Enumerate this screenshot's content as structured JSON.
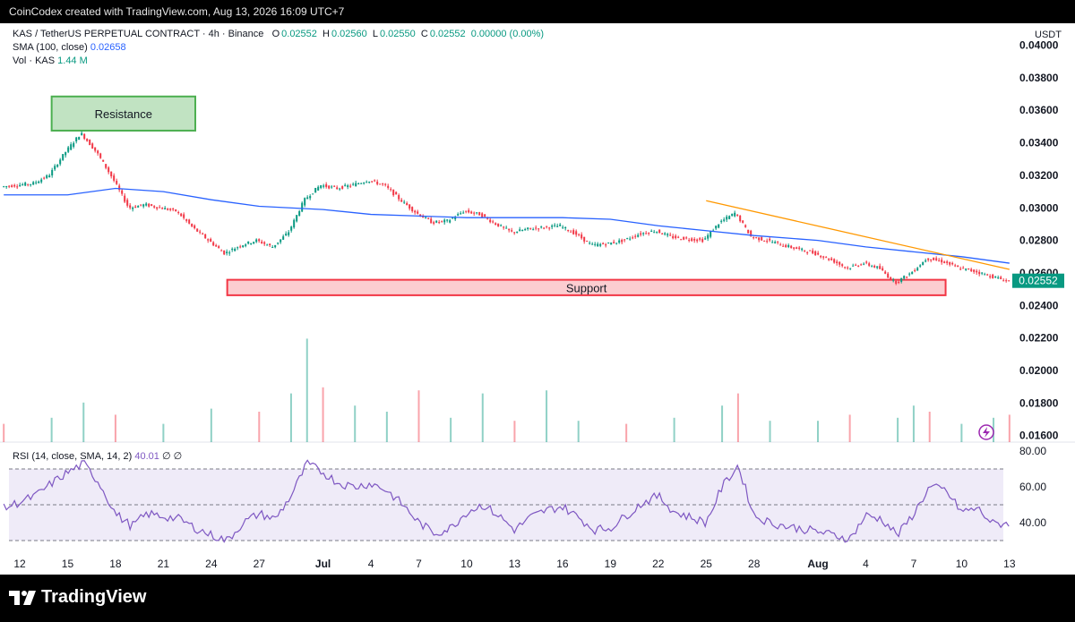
{
  "header": {
    "attribution": "CoinCodex created with TradingView.com, Aug 13, 2026 16:09 UTC+7"
  },
  "legend": {
    "symbol": "KAS / TetherUS PERPETUAL CONTRACT · 4h · Binance",
    "open_label": "O",
    "open": "0.02552",
    "high_label": "H",
    "high": "0.02560",
    "low_label": "L",
    "low": "0.02550",
    "close_label": "C",
    "close": "0.02552",
    "change": "0.00000 (0.00%)",
    "sma_label": "SMA (100, close)",
    "sma_value": "0.02658",
    "vol_label": "Vol · KAS",
    "vol_value": "1.44 M",
    "rsi_label": "RSI (14, close, SMA, 14, 2)",
    "rsi_value": "40.01",
    "rsi_na1": "∅",
    "rsi_na2": "∅"
  },
  "footer": {
    "brand": "TradingView"
  },
  "colors": {
    "up": "#089981",
    "down": "#f23645",
    "sma": "#2962ff",
    "trendline": "#ff9800",
    "rsi": "#7e57c2",
    "support": "#f23645",
    "resistance": "#4caf50",
    "last_price": "#089981"
  },
  "chart_data": {
    "type": "candlestick",
    "currency_label": "USDT",
    "price_axis": {
      "ticks": [
        "0.04000",
        "0.03800",
        "0.03600",
        "0.03400",
        "0.03200",
        "0.03000",
        "0.02800",
        "0.02600",
        "0.02400",
        "0.02200",
        "0.02000",
        "0.01800",
        "0.01600"
      ],
      "range": [
        0.0156,
        0.0408
      ]
    },
    "last_price": "0.02552",
    "x_axis": {
      "ticks": [
        "12",
        "15",
        "18",
        "21",
        "24",
        "27",
        "Jul",
        "4",
        "7",
        "10",
        "13",
        "16",
        "19",
        "22",
        "25",
        "28",
        "Aug",
        "4",
        "7",
        "10",
        "13"
      ]
    },
    "zones": [
      {
        "label": "Resistance",
        "date_start": "Jun 14",
        "date_end": "Jun 23",
        "price_low": 0.03475,
        "price_high": 0.03685
      },
      {
        "label": "Support",
        "date_start": "Jun 25",
        "date_end": "Aug 9",
        "price_low": 0.02463,
        "price_high": 0.02558
      }
    ],
    "trendline": {
      "start": {
        "date": "Jul 25",
        "price": 0.03044
      },
      "end": {
        "date": "Aug 13",
        "price": 0.02622
      }
    },
    "price_path": [
      {
        "date": "Jun 11",
        "price": 0.0313
      },
      {
        "date": "Jun 13",
        "price": 0.0315
      },
      {
        "date": "Jun 14",
        "price": 0.032
      },
      {
        "date": "Jun 15",
        "price": 0.0334
      },
      {
        "date": "Jun 16",
        "price": 0.0346
      },
      {
        "date": "Jun 17",
        "price": 0.0334
      },
      {
        "date": "Jun 18",
        "price": 0.0318
      },
      {
        "date": "Jun 19",
        "price": 0.03
      },
      {
        "date": "Jun 20",
        "price": 0.0302
      },
      {
        "date": "Jun 22",
        "price": 0.0298
      },
      {
        "date": "Jun 23",
        "price": 0.0288
      },
      {
        "date": "Jun 24",
        "price": 0.028
      },
      {
        "date": "Jun 25",
        "price": 0.0272
      },
      {
        "date": "Jun 26",
        "price": 0.0277
      },
      {
        "date": "Jun 27",
        "price": 0.028
      },
      {
        "date": "Jun 28",
        "price": 0.0276
      },
      {
        "date": "Jun 29",
        "price": 0.0285
      },
      {
        "date": "Jun 30",
        "price": 0.0305
      },
      {
        "date": "Jul 1",
        "price": 0.0314
      },
      {
        "date": "Jul 2",
        "price": 0.0312
      },
      {
        "date": "Jul 3",
        "price": 0.0314
      },
      {
        "date": "Jul 4",
        "price": 0.0317
      },
      {
        "date": "Jul 5",
        "price": 0.0314
      },
      {
        "date": "Jul 6",
        "price": 0.0305
      },
      {
        "date": "Jul 7",
        "price": 0.0297
      },
      {
        "date": "Jul 8",
        "price": 0.0291
      },
      {
        "date": "Jul 9",
        "price": 0.0292
      },
      {
        "date": "Jul 10",
        "price": 0.0298
      },
      {
        "date": "Jul 11",
        "price": 0.0296
      },
      {
        "date": "Jul 12",
        "price": 0.029
      },
      {
        "date": "Jul 13",
        "price": 0.0285
      },
      {
        "date": "Jul 14",
        "price": 0.0287
      },
      {
        "date": "Jul 15",
        "price": 0.0288
      },
      {
        "date": "Jul 16",
        "price": 0.0289
      },
      {
        "date": "Jul 17",
        "price": 0.0284
      },
      {
        "date": "Jul 18",
        "price": 0.0277
      },
      {
        "date": "Jul 19",
        "price": 0.0278
      },
      {
        "date": "Jul 20",
        "price": 0.028
      },
      {
        "date": "Jul 21",
        "price": 0.0284
      },
      {
        "date": "Jul 22",
        "price": 0.0286
      },
      {
        "date": "Jul 23",
        "price": 0.0282
      },
      {
        "date": "Jul 24",
        "price": 0.0281
      },
      {
        "date": "Jul 25",
        "price": 0.028
      },
      {
        "date": "Jul 26",
        "price": 0.0291
      },
      {
        "date": "Jul 27",
        "price": 0.0297
      },
      {
        "date": "Jul 28",
        "price": 0.0282
      },
      {
        "date": "Jul 29",
        "price": 0.028
      },
      {
        "date": "Jul 30",
        "price": 0.0277
      },
      {
        "date": "Aug 1",
        "price": 0.0272
      },
      {
        "date": "Aug 2",
        "price": 0.0268
      },
      {
        "date": "Aug 3",
        "price": 0.0263
      },
      {
        "date": "Aug 4",
        "price": 0.0266
      },
      {
        "date": "Aug 5",
        "price": 0.0263
      },
      {
        "date": "Aug 6",
        "price": 0.0254
      },
      {
        "date": "Aug 7",
        "price": 0.026
      },
      {
        "date": "Aug 8",
        "price": 0.0269
      },
      {
        "date": "Aug 9",
        "price": 0.0267
      },
      {
        "date": "Aug 10",
        "price": 0.0263
      },
      {
        "date": "Aug 11",
        "price": 0.0261
      },
      {
        "date": "Aug 12",
        "price": 0.0258
      },
      {
        "date": "Aug 13",
        "price": 0.02552
      }
    ],
    "sma_path": [
      {
        "date": "Jun 11",
        "price": 0.0308
      },
      {
        "date": "Jun 15",
        "price": 0.0308
      },
      {
        "date": "Jun 18",
        "price": 0.0312
      },
      {
        "date": "Jun 21",
        "price": 0.031
      },
      {
        "date": "Jun 24",
        "price": 0.0305
      },
      {
        "date": "Jun 27",
        "price": 0.0301
      },
      {
        "date": "Jul 1",
        "price": 0.0299
      },
      {
        "date": "Jul 4",
        "price": 0.0296
      },
      {
        "date": "Jul 7",
        "price": 0.0295
      },
      {
        "date": "Jul 10",
        "price": 0.0294
      },
      {
        "date": "Jul 13",
        "price": 0.0294
      },
      {
        "date": "Jul 16",
        "price": 0.0294
      },
      {
        "date": "Jul 19",
        "price": 0.0293
      },
      {
        "date": "Jul 22",
        "price": 0.0289
      },
      {
        "date": "Jul 25",
        "price": 0.0286
      },
      {
        "date": "Jul 28",
        "price": 0.0283
      },
      {
        "date": "Aug 1",
        "price": 0.028
      },
      {
        "date": "Aug 4",
        "price": 0.0276
      },
      {
        "date": "Aug 7",
        "price": 0.0273
      },
      {
        "date": "Aug 10",
        "price": 0.027
      },
      {
        "date": "Aug 13",
        "price": 0.0266
      }
    ],
    "rsi": {
      "levels": [
        "80.00",
        "60.00",
        "40.00"
      ],
      "range": [
        26,
        84
      ],
      "bands": [
        30,
        50,
        70
      ],
      "path": [
        {
          "date": "Jun 11",
          "value": 48
        },
        {
          "date": "Jun 13",
          "value": 55
        },
        {
          "date": "Jun 14",
          "value": 62
        },
        {
          "date": "Jun 15",
          "value": 68
        },
        {
          "date": "Jun 16",
          "value": 73
        },
        {
          "date": "Jun 17",
          "value": 62
        },
        {
          "date": "Jun 18",
          "value": 45
        },
        {
          "date": "Jun 19",
          "value": 38
        },
        {
          "date": "Jun 20",
          "value": 45
        },
        {
          "date": "Jun 22",
          "value": 42
        },
        {
          "date": "Jun 23",
          "value": 37
        },
        {
          "date": "Jun 24",
          "value": 33
        },
        {
          "date": "Jun 25",
          "value": 30
        },
        {
          "date": "Jun 26",
          "value": 40
        },
        {
          "date": "Jun 27",
          "value": 45
        },
        {
          "date": "Jun 28",
          "value": 42
        },
        {
          "date": "Jun 29",
          "value": 55
        },
        {
          "date": "Jun 30",
          "value": 73
        },
        {
          "date": "Jul 1",
          "value": 68
        },
        {
          "date": "Jul 2",
          "value": 62
        },
        {
          "date": "Jul 3",
          "value": 60
        },
        {
          "date": "Jul 4",
          "value": 62
        },
        {
          "date": "Jul 5",
          "value": 58
        },
        {
          "date": "Jul 6",
          "value": 50
        },
        {
          "date": "Jul 7",
          "value": 40
        },
        {
          "date": "Jul 8",
          "value": 34
        },
        {
          "date": "Jul 9",
          "value": 37
        },
        {
          "date": "Jul 10",
          "value": 46
        },
        {
          "date": "Jul 11",
          "value": 50
        },
        {
          "date": "Jul 12",
          "value": 44
        },
        {
          "date": "Jul 13",
          "value": 36
        },
        {
          "date": "Jul 14",
          "value": 43
        },
        {
          "date": "Jul 15",
          "value": 47
        },
        {
          "date": "Jul 16",
          "value": 49
        },
        {
          "date": "Jul 17",
          "value": 43
        },
        {
          "date": "Jul 18",
          "value": 36
        },
        {
          "date": "Jul 19",
          "value": 37
        },
        {
          "date": "Jul 20",
          "value": 44
        },
        {
          "date": "Jul 21",
          "value": 51
        },
        {
          "date": "Jul 22",
          "value": 55
        },
        {
          "date": "Jul 23",
          "value": 46
        },
        {
          "date": "Jul 24",
          "value": 43
        },
        {
          "date": "Jul 25",
          "value": 40
        },
        {
          "date": "Jul 26",
          "value": 60
        },
        {
          "date": "Jul 27",
          "value": 72
        },
        {
          "date": "Jul 28",
          "value": 44
        },
        {
          "date": "Jul 29",
          "value": 40
        },
        {
          "date": "Jul 30",
          "value": 38
        },
        {
          "date": "Aug 1",
          "value": 35
        },
        {
          "date": "Aug 2",
          "value": 33
        },
        {
          "date": "Aug 3",
          "value": 31
        },
        {
          "date": "Aug 4",
          "value": 44
        },
        {
          "date": "Aug 5",
          "value": 42
        },
        {
          "date": "Aug 6",
          "value": 33
        },
        {
          "date": "Aug 7",
          "value": 45
        },
        {
          "date": "Aug 8",
          "value": 60
        },
        {
          "date": "Aug 9",
          "value": 58
        },
        {
          "date": "Aug 10",
          "value": 46
        },
        {
          "date": "Aug 11",
          "value": 48
        },
        {
          "date": "Aug 12",
          "value": 39
        },
        {
          "date": "Aug 13",
          "value": 40
        }
      ]
    },
    "volume": [
      {
        "date": "Jun 11",
        "value": 0.6
      },
      {
        "date": "Jun 14",
        "value": 0.8
      },
      {
        "date": "Jun 16",
        "value": 1.3
      },
      {
        "date": "Jun 18",
        "value": 0.9
      },
      {
        "date": "Jun 21",
        "value": 0.6
      },
      {
        "date": "Jun 24",
        "value": 1.1
      },
      {
        "date": "Jun 27",
        "value": 1.0
      },
      {
        "date": "Jun 29",
        "value": 1.6
      },
      {
        "date": "Jun 30",
        "value": 3.4
      },
      {
        "date": "Jul 1",
        "value": 1.8
      },
      {
        "date": "Jul 3",
        "value": 1.2
      },
      {
        "date": "Jul 5",
        "value": 1.0
      },
      {
        "date": "Jul 7",
        "value": 1.7
      },
      {
        "date": "Jul 9",
        "value": 0.8
      },
      {
        "date": "Jul 11",
        "value": 1.6
      },
      {
        "date": "Jul 13",
        "value": 0.7
      },
      {
        "date": "Jul 15",
        "value": 1.7
      },
      {
        "date": "Jul 17",
        "value": 0.7
      },
      {
        "date": "Jul 20",
        "value": 0.6
      },
      {
        "date": "Jul 23",
        "value": 0.8
      },
      {
        "date": "Jul 26",
        "value": 1.2
      },
      {
        "date": "Jul 27",
        "value": 1.6
      },
      {
        "date": "Jul 29",
        "value": 0.7
      },
      {
        "date": "Aug 1",
        "value": 0.7
      },
      {
        "date": "Aug 3",
        "value": 0.9
      },
      {
        "date": "Aug 6",
        "value": 0.8
      },
      {
        "date": "Aug 7",
        "value": 1.2
      },
      {
        "date": "Aug 8",
        "value": 1.0
      },
      {
        "date": "Aug 10",
        "value": 0.6
      },
      {
        "date": "Aug 12",
        "value": 0.8
      },
      {
        "date": "Aug 13",
        "value": 0.9
      }
    ]
  }
}
